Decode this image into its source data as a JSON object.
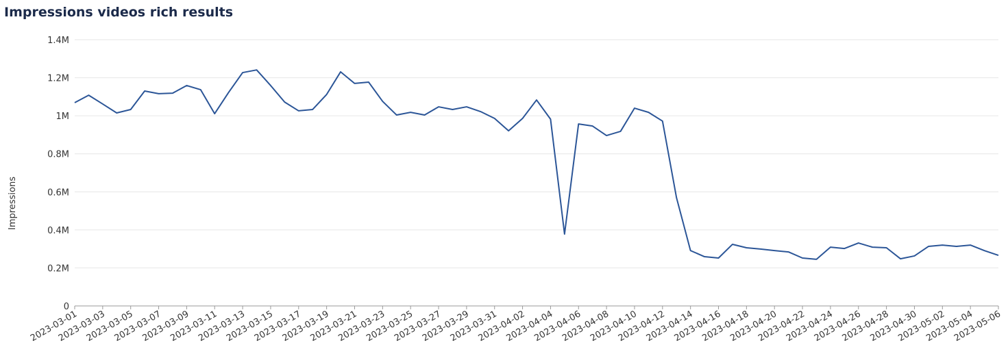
{
  "chart_data": {
    "type": "line",
    "title": "Impressions videos rich results",
    "y_label": "Impressions",
    "categories": [
      "2023-03-01",
      null,
      "2023-03-03",
      null,
      "2023-03-05",
      null,
      "2023-03-07",
      null,
      "2023-03-09",
      null,
      "2023-03-11",
      null,
      "2023-03-13",
      null,
      "2023-03-15",
      null,
      "2023-03-17",
      null,
      "2023-03-19",
      null,
      "2023-03-21",
      null,
      "2023-03-23",
      null,
      "2023-03-25",
      null,
      "2023-03-27",
      null,
      "2023-03-29",
      null,
      "2023-03-31",
      null,
      "2023-04-02",
      null,
      "2023-04-04",
      null,
      "2023-04-06",
      null,
      "2023-04-08",
      null,
      "2023-04-10",
      null,
      "2023-04-12",
      null,
      "2023-04-14",
      null,
      "2023-04-16",
      null,
      "2023-04-18",
      null,
      "2023-04-20",
      null,
      "2023-04-22",
      null,
      "2023-04-24",
      null,
      "2023-04-26",
      null,
      "2023-04-28",
      null,
      "2023-04-30",
      null,
      "2023-05-02",
      null,
      "2023-05-04",
      null,
      "2023-05-06"
    ],
    "series": [
      {
        "name": "Impressions",
        "color": "#2b5597",
        "values": [
          1069000,
          1108000,
          1062000,
          1015000,
          1033000,
          1130000,
          1116000,
          1119000,
          1159000,
          1137000,
          1011000,
          1123000,
          1227000,
          1241000,
          1159000,
          1072000,
          1026000,
          1033000,
          1112000,
          1231000,
          1170000,
          1177000,
          1076000,
          1004000,
          1018000,
          1004000,
          1047000,
          1033000,
          1047000,
          1022000,
          986000,
          921000,
          986000,
          1083000,
          982000,
          378000,
          957000,
          946000,
          896000,
          918000,
          1040000,
          1018000,
          972000,
          569000,
          291000,
          259000,
          252000,
          324000,
          306000,
          299000,
          291000,
          284000,
          252000,
          245000,
          309000,
          302000,
          331000,
          309000,
          306000,
          248000,
          263000,
          313000,
          320000,
          313000,
          320000,
          291000,
          266000
        ]
      }
    ],
    "ylim": [
      0,
      1400000
    ],
    "yticks": [
      0,
      {
        "value": 200000,
        "label": "0.2M"
      },
      {
        "value": 400000,
        "label": "0.4M"
      },
      {
        "value": 600000,
        "label": "0.6M"
      },
      {
        "value": 800000,
        "label": "0.8M"
      },
      {
        "value": 1000000,
        "label": "1M"
      },
      {
        "value": 1200000,
        "label": "1.2M"
      },
      {
        "value": 1400000,
        "label": "1.4M"
      }
    ],
    "grid": true
  }
}
